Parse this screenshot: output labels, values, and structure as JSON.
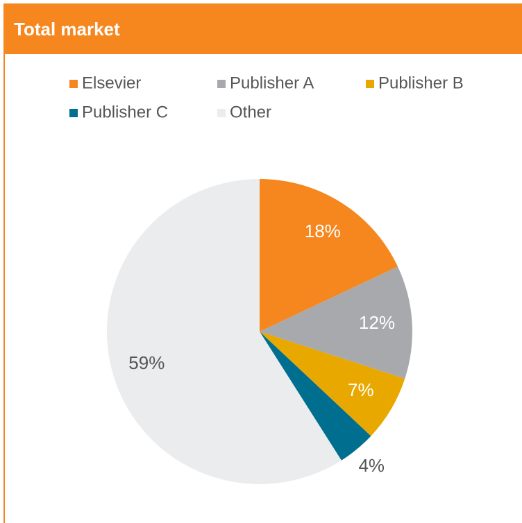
{
  "chart_data": {
    "type": "pie",
    "title": "Total market",
    "categories": [
      "Elsevier",
      "Publisher A",
      "Publisher B",
      "Publisher C",
      "Other"
    ],
    "values": [
      18,
      12,
      7,
      4,
      59
    ],
    "value_labels": [
      "18%",
      "12%",
      "7%",
      "4%",
      "59%"
    ],
    "colors": [
      "#f6871f",
      "#a7a9ac",
      "#e9a800",
      "#006f8f",
      "#ebeced"
    ],
    "label_colors": [
      "#ffffff",
      "#ffffff",
      "#ffffff",
      "#555555",
      "#555555"
    ],
    "header_color": "#f6871f"
  }
}
